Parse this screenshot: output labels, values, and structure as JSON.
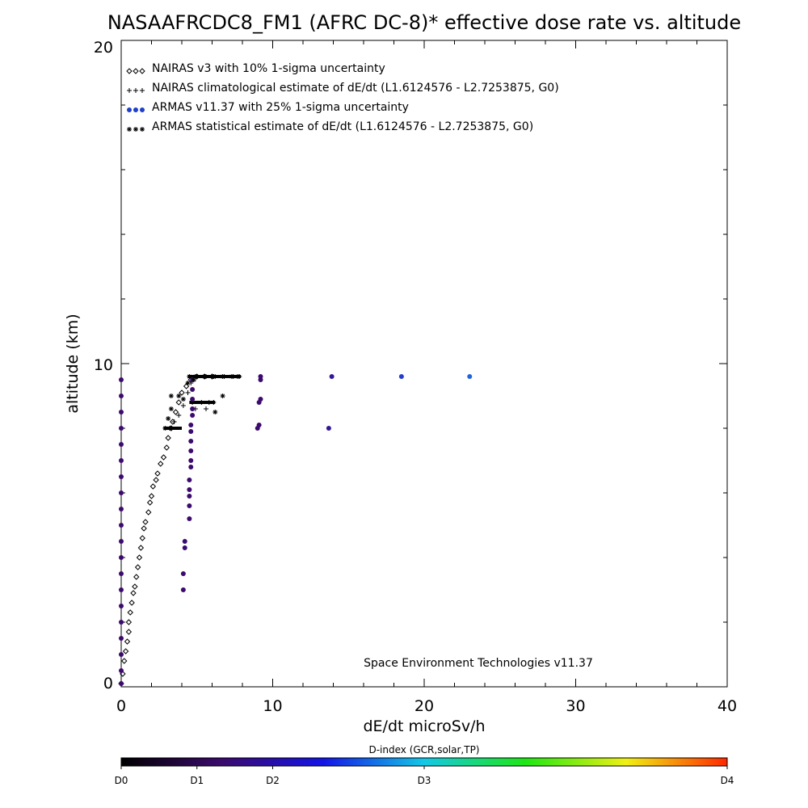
{
  "chart_data": {
    "type": "scatter",
    "title": "NASAAFRCDC8_FM1 (AFRC DC-8)* effective dose rate vs. altitude",
    "xlabel": "dE/dt microSv/h",
    "ylabel": "altitude (km)",
    "xlim": [
      0,
      40
    ],
    "ylim": [
      0,
      20
    ],
    "x_ticks": [
      "0",
      "10",
      "20",
      "30",
      "40"
    ],
    "y_ticks": [
      "0",
      "10",
      "20"
    ],
    "grid": false,
    "legend_position": "top-left",
    "annotation": "Space Environment Technologies v11.37",
    "series": [
      {
        "name": "NAIRAS v3 with 10% 1-sigma uncertainty",
        "marker": "diamond",
        "color": "#000000",
        "points": [
          [
            0.0,
            0.1
          ],
          [
            0.1,
            0.4
          ],
          [
            0.2,
            0.8
          ],
          [
            0.3,
            1.1
          ],
          [
            0.4,
            1.4
          ],
          [
            0.5,
            1.7
          ],
          [
            0.5,
            2.0
          ],
          [
            0.6,
            2.3
          ],
          [
            0.7,
            2.6
          ],
          [
            0.8,
            2.9
          ],
          [
            0.9,
            3.1
          ],
          [
            1.0,
            3.4
          ],
          [
            1.1,
            3.7
          ],
          [
            1.2,
            4.0
          ],
          [
            1.3,
            4.3
          ],
          [
            1.4,
            4.6
          ],
          [
            1.5,
            4.9
          ],
          [
            1.6,
            5.1
          ],
          [
            1.8,
            5.4
          ],
          [
            1.9,
            5.7
          ],
          [
            2.0,
            5.9
          ],
          [
            2.1,
            6.2
          ],
          [
            2.3,
            6.4
          ],
          [
            2.4,
            6.6
          ],
          [
            2.6,
            6.9
          ],
          [
            2.8,
            7.1
          ],
          [
            3.0,
            7.4
          ],
          [
            3.1,
            7.7
          ],
          [
            3.3,
            8.0
          ],
          [
            3.4,
            8.2
          ],
          [
            3.6,
            8.5
          ],
          [
            3.8,
            8.8
          ],
          [
            4.0,
            9.1
          ],
          [
            4.3,
            9.3
          ],
          [
            4.6,
            9.5
          ],
          [
            5.0,
            9.6
          ],
          [
            5.5,
            9.6
          ],
          [
            6.0,
            9.6
          ]
        ]
      },
      {
        "name": "NAIRAS climatological estimate of dE/dt (L1.6124576 - L2.7253875, G0)",
        "marker": "plus",
        "color": "#000000",
        "points": [
          [
            3.2,
            8.0
          ],
          [
            3.5,
            8.2
          ],
          [
            3.8,
            8.4
          ],
          [
            4.1,
            8.7
          ],
          [
            4.4,
            9.1
          ],
          [
            4.6,
            9.4
          ],
          [
            4.7,
            8.8
          ],
          [
            5.3,
            8.8
          ],
          [
            5.8,
            8.8
          ],
          [
            6.1,
            8.8
          ],
          [
            5.0,
            9.6
          ],
          [
            5.6,
            9.6
          ],
          [
            6.2,
            9.6
          ],
          [
            6.8,
            9.6
          ],
          [
            7.4,
            9.6
          ],
          [
            7.8,
            9.6
          ],
          [
            4.9,
            8.6
          ],
          [
            5.6,
            8.6
          ]
        ]
      },
      {
        "name": "ARMAS v11.37 with 25% 1-sigma uncertainty",
        "marker": "dot",
        "color": "#1e40c8",
        "points": [
          [
            0.0,
            0.1
          ],
          [
            0.0,
            0.5
          ],
          [
            0.0,
            1.0
          ],
          [
            0.0,
            1.5
          ],
          [
            0.0,
            2.0
          ],
          [
            0.0,
            2.5
          ],
          [
            0.0,
            3.0
          ],
          [
            0.0,
            3.5
          ],
          [
            0.0,
            4.0
          ],
          [
            0.0,
            4.5
          ],
          [
            0.0,
            5.0
          ],
          [
            0.0,
            5.5
          ],
          [
            0.0,
            6.0
          ],
          [
            0.0,
            6.5
          ],
          [
            0.0,
            7.0
          ],
          [
            0.0,
            7.5
          ],
          [
            0.0,
            8.0
          ],
          [
            0.0,
            8.5
          ],
          [
            0.0,
            9.0
          ],
          [
            0.0,
            9.5
          ],
          [
            4.1,
            3.0
          ],
          [
            4.1,
            3.5
          ],
          [
            4.2,
            4.3
          ],
          [
            4.2,
            4.5
          ],
          [
            4.5,
            5.2
          ],
          [
            4.5,
            5.6
          ],
          [
            4.5,
            5.9
          ],
          [
            4.5,
            6.1
          ],
          [
            4.5,
            6.4
          ],
          [
            4.6,
            6.8
          ],
          [
            4.6,
            7.0
          ],
          [
            4.6,
            7.3
          ],
          [
            4.6,
            7.6
          ],
          [
            4.6,
            7.9
          ],
          [
            4.6,
            8.1
          ],
          [
            4.7,
            8.4
          ],
          [
            4.7,
            8.6
          ],
          [
            4.7,
            8.9
          ],
          [
            4.7,
            9.2
          ],
          [
            4.7,
            9.5
          ],
          [
            9.0,
            8.0
          ],
          [
            9.1,
            8.1
          ],
          [
            9.1,
            8.8
          ],
          [
            9.2,
            8.9
          ],
          [
            9.2,
            9.5
          ],
          [
            9.2,
            9.6
          ],
          [
            13.7,
            8.0
          ],
          [
            13.9,
            9.6
          ],
          [
            18.5,
            9.6
          ],
          [
            23.0,
            9.6
          ]
        ]
      },
      {
        "name": "ARMAS statistical estimate of dE/dt (L1.6124576 - L2.7253875, G0)",
        "marker": "asterisk",
        "color": "#000000",
        "points": [
          [
            2.9,
            8.0
          ],
          [
            3.1,
            8.3
          ],
          [
            3.3,
            8.6
          ],
          [
            3.3,
            9.0
          ],
          [
            3.8,
            9.0
          ],
          [
            4.1,
            8.9
          ],
          [
            4.4,
            9.4
          ],
          [
            4.5,
            9.6
          ],
          [
            4.9,
            9.6
          ],
          [
            5.5,
            9.6
          ],
          [
            6.1,
            9.6
          ],
          [
            6.7,
            9.6
          ],
          [
            7.3,
            9.6
          ],
          [
            7.7,
            9.6
          ],
          [
            6.2,
            8.5
          ],
          [
            6.7,
            9.0
          ],
          [
            4.8,
            9.5
          ]
        ]
      }
    ],
    "horizontal_bars": [
      {
        "y": 8.0,
        "x0": 2.8,
        "x1": 4.0
      },
      {
        "y": 8.8,
        "x0": 4.5,
        "x1": 6.2
      },
      {
        "y": 9.6,
        "x0": 4.4,
        "x1": 7.9
      }
    ],
    "colorbar": {
      "title": "D-index (GCR,solar,TP)",
      "labels": [
        {
          "text": "D0",
          "pos": 0.0
        },
        {
          "text": "D1",
          "pos": 0.125
        },
        {
          "text": "D2",
          "pos": 0.25
        },
        {
          "text": "D3",
          "pos": 0.5
        },
        {
          "text": "D4",
          "pos": 1.0
        }
      ],
      "colors": [
        "#000000",
        "#3c0a6e",
        "#1414e6",
        "#14c8e6",
        "#1ee614",
        "#f0f014",
        "#ff2800"
      ]
    }
  }
}
